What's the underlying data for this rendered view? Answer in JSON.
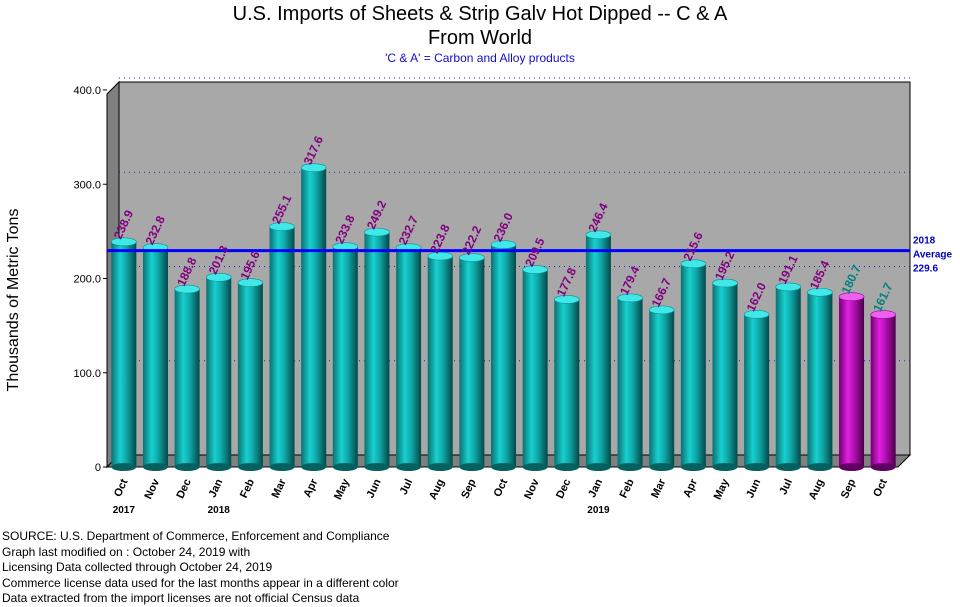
{
  "title_line1": "U.S. Imports of Sheets & Strip Galv Hot Dipped -- C & A",
  "title_line2": "From World",
  "subtitle": "'C & A' = Carbon and Alloy products",
  "footer": [
    "SOURCE: U.S. Department of Commerce, Enforcement and Compliance",
    "Graph last modified on : October 24, 2019   with",
    "Licensing Data collected through October 24, 2019",
    "Commerce license data used for the last months appear in a different color",
    "Data extracted from the import licenses are not official Census data"
  ],
  "colors": {
    "census_bar": "#10b8b8",
    "license_bar": "#c010c0",
    "census_label": "#800080",
    "license_label": "#008080",
    "average_line": "#0000ff",
    "plot_bg": "#a8a8a8"
  },
  "chart_data": {
    "type": "bar",
    "ylabel": "Thousands of Metric Tons",
    "ylim": [
      0,
      400
    ],
    "yticks": [
      "0",
      "100.0",
      "200.0",
      "300.0",
      "400.0"
    ],
    "grid": true,
    "categories": [
      "Oct",
      "Nov",
      "Dec",
      "Jan",
      "Feb",
      "Mar",
      "Apr",
      "May",
      "Jun",
      "Jul",
      "Aug",
      "Sep",
      "Oct",
      "Nov",
      "Dec",
      "Jan",
      "Feb",
      "Mar",
      "Apr",
      "May",
      "Jun",
      "Jul",
      "Aug",
      "Sep",
      "Oct"
    ],
    "values": [
      238.9,
      232.8,
      188.8,
      201.3,
      195.6,
      255.1,
      317.6,
      233.8,
      249.2,
      232.7,
      223.8,
      222.2,
      236.0,
      209.5,
      177.8,
      246.4,
      179.4,
      166.7,
      215.6,
      195.2,
      162.0,
      191.1,
      185.4,
      180.7,
      161.7
    ],
    "value_labels": [
      "238.9",
      "232.8",
      "188.8",
      "201.3",
      "195.6",
      "255.1",
      "317.6",
      "233.8",
      "249.2",
      "232.7",
      "223.8",
      "222.2",
      "236.0",
      "209.5",
      "177.8",
      "246.4",
      "179.4",
      "166.7",
      "215.6",
      "195.2",
      "162.0",
      "191.1",
      "185.4",
      "180.7",
      "161.7"
    ],
    "license_data": [
      false,
      false,
      false,
      false,
      false,
      false,
      false,
      false,
      false,
      false,
      false,
      false,
      false,
      false,
      false,
      false,
      false,
      false,
      false,
      false,
      false,
      false,
      false,
      true,
      true
    ],
    "year_labels": [
      {
        "index": 0,
        "label": "2017"
      },
      {
        "index": 3,
        "label": "2018"
      },
      {
        "index": 15,
        "label": "2019"
      }
    ],
    "average": {
      "value": 229.6,
      "label_lines": [
        "2018",
        "Average",
        "229.6"
      ]
    }
  }
}
